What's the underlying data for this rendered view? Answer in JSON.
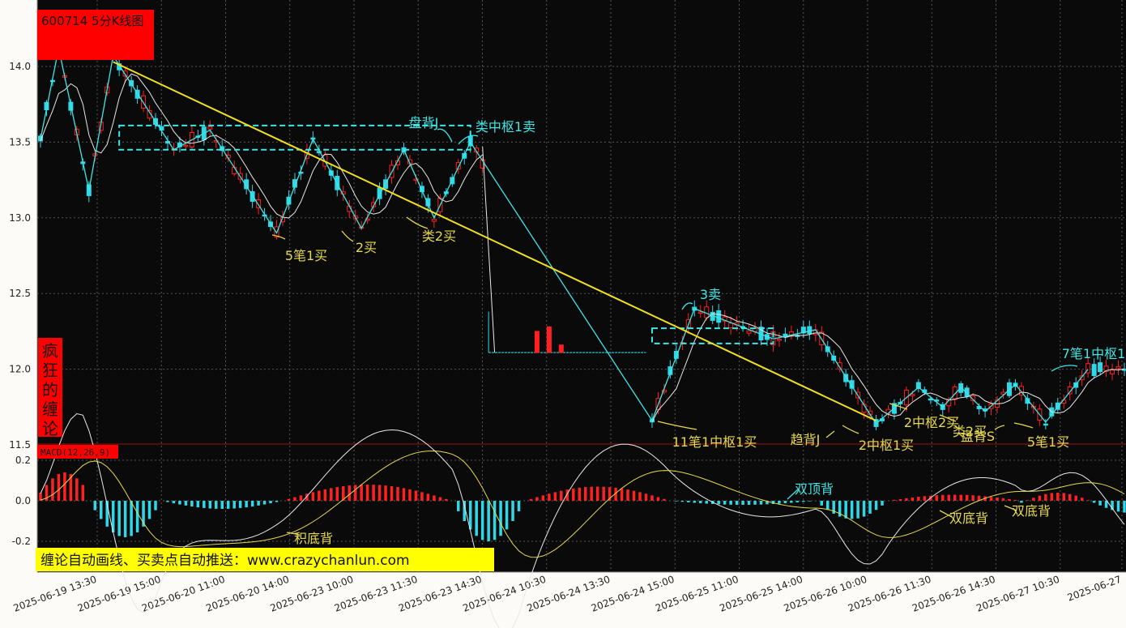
{
  "chart_data": [
    {
      "type": "candlestick",
      "title": "600714 5分K线图",
      "side_label": "疯狂的缠论",
      "y_ticks": [
        "14.0",
        "13.5",
        "13.0",
        "12.5",
        "12.0",
        "11.5"
      ],
      "ylim": [
        11.5,
        14.4
      ],
      "x_ticks": [
        "2025-06-19 13:30",
        "2025-06-19 15:00",
        "2025-06-20 11:00",
        "2025-06-20 14:00",
        "2025-06-23 10:00",
        "2025-06-23 11:30",
        "2025-06-23 14:30",
        "2025-06-24 10:30",
        "2025-06-24 13:30",
        "2025-06-24 15:00",
        "2025-06-25 11:00",
        "2025-06-25 14:00",
        "2025-06-26 10:00",
        "2025-06-26 11:30",
        "2025-06-26 14:30",
        "2025-06-27 10:30",
        "2025-06-27"
      ],
      "bi_strokes": [
        [
          0,
          13.52
        ],
        [
          3,
          14.12
        ],
        [
          8,
          13.18
        ],
        [
          12,
          14.07
        ],
        [
          22,
          13.45
        ],
        [
          28,
          13.58
        ],
        [
          39,
          12.9
        ],
        [
          45,
          13.52
        ],
        [
          53,
          12.93
        ],
        [
          60,
          13.45
        ],
        [
          65,
          13.0
        ],
        [
          71,
          13.5
        ],
        [
          101,
          11.66
        ],
        [
          108,
          12.4
        ],
        [
          121,
          12.2
        ],
        [
          128,
          12.26
        ],
        [
          138,
          11.64
        ],
        [
          145,
          11.88
        ],
        [
          149,
          11.75
        ],
        [
          152,
          11.88
        ],
        [
          156,
          11.72
        ],
        [
          161,
          11.9
        ],
        [
          166,
          11.65
        ],
        [
          173,
          12.0
        ]
      ],
      "trend_line": [
        [
          12,
          14.03
        ],
        [
          138,
          11.66
        ]
      ],
      "zhongshu": [
        {
          "from": 13,
          "to": 71,
          "low": 13.45,
          "high": 13.61
        },
        {
          "from": 101,
          "to": 121,
          "low": 12.17,
          "high": 12.27
        }
      ],
      "annotations": [
        {
          "text": "5笔1买",
          "color": "#e6d84e"
        },
        {
          "text": "2买",
          "color": "#e6d84e"
        },
        {
          "text": "类2买",
          "color": "#e6d84e"
        },
        {
          "text": "盘背J",
          "color": "#3ee6e6"
        },
        {
          "text": "类中枢1卖",
          "color": "#3ee6e6"
        },
        {
          "text": "3卖",
          "color": "#3ee6e6"
        },
        {
          "text": "11笔1中枢1买",
          "color": "#e6d84e"
        },
        {
          "text": "趋背J",
          "color": "#e6d84e"
        },
        {
          "text": "2中枢1买",
          "color": "#e6d84e"
        },
        {
          "text": "2中枢2买",
          "color": "#e6d84e"
        },
        {
          "text": "类2买",
          "color": "#e6d84e"
        },
        {
          "text": "盘背S",
          "color": "#e6d84e"
        },
        {
          "text": "5笔1买",
          "color": "#e6d84e"
        },
        {
          "text": "7笔1中枢1",
          "color": "#3ee6e6"
        }
      ],
      "colors": {
        "up": "#ff2020",
        "down": "#2ed8e8",
        "background": "#0a0a0a",
        "trend": "#f0e020",
        "bi": "#3ee6e6"
      }
    },
    {
      "type": "bar",
      "title": "MACD(12,26,9)",
      "y_ticks": [
        "0.2",
        "0.0",
        "-0.2"
      ],
      "ylim": [
        -0.25,
        0.22
      ],
      "annotations": [
        {
          "text": "积底背",
          "color": "#e6d84e"
        },
        {
          "text": "双顶背",
          "color": "#3ee6e6"
        },
        {
          "text": "双底背",
          "color": "#e6d84e"
        },
        {
          "text": "双底背",
          "color": "#e6d84e"
        }
      ]
    }
  ],
  "banner": "缠论自动画线、买卖点自动推送：www.crazychanlun.com"
}
